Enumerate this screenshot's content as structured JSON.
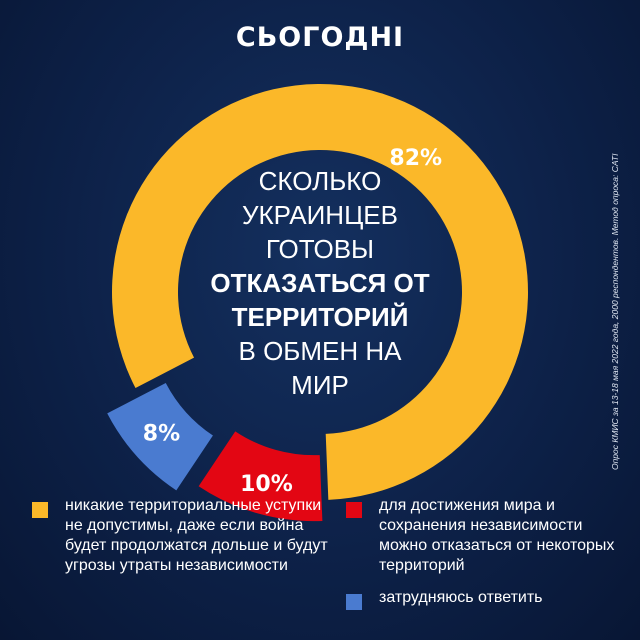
{
  "brand": "СЬОГОДНІ",
  "title_lines": [
    {
      "text": "СКОЛЬКО",
      "bold": false
    },
    {
      "text": "УКРАИНЦЕВ",
      "bold": false
    },
    {
      "text": "ГОТОВЫ",
      "bold": false
    },
    {
      "text": "ОТКАЗАТЬСЯ ОТ",
      "bold": true
    },
    {
      "text": "ТЕРРИТОРИЙ",
      "bold": true
    },
    {
      "text": "В ОБМЕН НА",
      "bold": false
    },
    {
      "text": "МИР",
      "bold": false
    }
  ],
  "source_note": "Опрос КМИС за 13-18 мая 2022 года, 2000 респондентов.  Метод опроса: CATI",
  "colors": {
    "yellow": "#fbb829",
    "red": "#e30613",
    "blue": "#4a7bd0"
  },
  "chart_data": {
    "type": "pie",
    "style": "donut",
    "title": "СКОЛЬКО УКРАИНЦЕВ ГОТОВЫ ОТКАЗАТЬСЯ ОТ ТЕРРИТОРИЙ В ОБМЕН НА МИР",
    "slices": [
      {
        "value": 82,
        "label": "82%",
        "color": "#fbb829"
      },
      {
        "value": 10,
        "label": "10%",
        "color": "#e30613"
      },
      {
        "value": 8,
        "label": "8%",
        "color": "#4a7bd0"
      }
    ]
  },
  "legend": {
    "yellow": "никакие территориальные уступки не допустимы, даже если война будет продолжатся дольше и будут угрозы утраты независимости",
    "red": "для достижения мира и сохранения независимости можно отказаться от некоторых территорий",
    "blue": "затрудняюсь ответить"
  }
}
